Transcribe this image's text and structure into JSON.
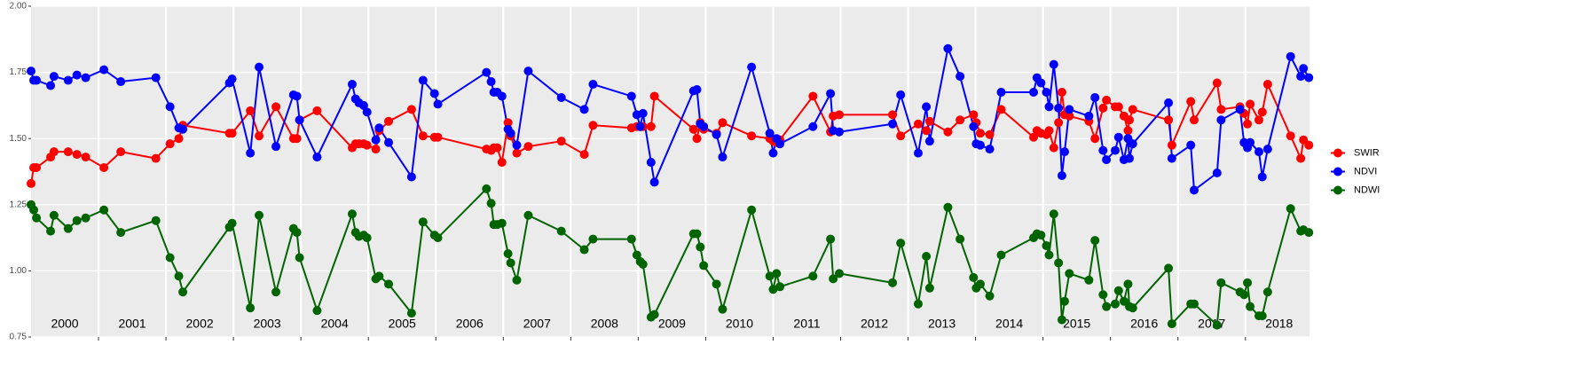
{
  "chart_data": {
    "type": "line",
    "x": [
      2000.0,
      2000.04,
      2000.08,
      2000.29,
      2000.34,
      2000.55,
      2000.68,
      2000.81,
      2001.08,
      2001.33,
      2001.85,
      2002.06,
      2002.19,
      2002.25,
      2002.94,
      2002.98,
      2003.25,
      2003.38,
      2003.63,
      2003.89,
      2003.94,
      2003.98,
      2004.24,
      2004.76,
      2004.81,
      2004.86,
      2004.93,
      2004.98,
      2005.11,
      2005.16,
      2005.3,
      2005.64,
      2005.81,
      2005.98,
      2006.03,
      2006.75,
      2006.82,
      2006.86,
      2006.91,
      2006.98,
      2007.07,
      2007.11,
      2007.2,
      2007.37,
      2007.86,
      2008.2,
      2008.33,
      2008.9,
      2008.98,
      2009.03,
      2009.07,
      2009.19,
      2009.24,
      2009.82,
      2009.87,
      2009.92,
      2009.97,
      2010.16,
      2010.25,
      2010.68,
      2010.95,
      2011.0,
      2011.05,
      2011.1,
      2011.59,
      2011.85,
      2011.89,
      2011.98,
      2012.77,
      2012.89,
      2013.15,
      2013.27,
      2013.32,
      2013.59,
      2013.77,
      2013.97,
      2014.01,
      2014.07,
      2014.21,
      2014.38,
      2014.86,
      2014.91,
      2014.97,
      2015.05,
      2015.09,
      2015.16,
      2015.23,
      2015.28,
      2015.32,
      2015.39,
      2015.68,
      2015.77,
      2015.89,
      2015.94,
      2016.07,
      2016.12,
      2016.2,
      2016.26,
      2016.28,
      2016.33,
      2016.86,
      2016.91,
      2017.19,
      2017.24,
      2017.58,
      2017.64,
      2017.92,
      2017.98,
      2018.03,
      2018.07,
      2018.2,
      2018.25,
      2018.33,
      2018.67,
      2018.82,
      2018.86,
      2018.94
    ],
    "series": [
      {
        "name": "SWIR",
        "color": "#ff0000",
        "values": [
          1.33,
          1.39,
          1.39,
          1.43,
          1.45,
          1.45,
          1.44,
          1.43,
          1.39,
          1.45,
          1.425,
          1.48,
          1.5,
          1.55,
          1.52,
          1.52,
          1.605,
          1.51,
          1.62,
          1.5,
          1.5,
          1.57,
          1.605,
          1.465,
          1.48,
          1.48,
          1.48,
          1.475,
          1.46,
          1.53,
          1.565,
          1.61,
          1.51,
          1.505,
          1.505,
          1.46,
          1.455,
          1.465,
          1.465,
          1.41,
          1.56,
          1.51,
          1.445,
          1.47,
          1.49,
          1.44,
          1.55,
          1.54,
          1.545,
          1.545,
          1.545,
          1.545,
          1.66,
          1.535,
          1.5,
          1.56,
          1.535,
          1.52,
          1.56,
          1.51,
          1.5,
          1.49,
          1.485,
          1.495,
          1.66,
          1.525,
          1.585,
          1.59,
          1.59,
          1.51,
          1.555,
          1.53,
          1.565,
          1.525,
          1.57,
          1.59,
          1.56,
          1.52,
          1.515,
          1.61,
          1.505,
          1.53,
          1.52,
          1.515,
          1.53,
          1.465,
          1.56,
          1.675,
          1.59,
          1.585,
          1.565,
          1.5,
          1.615,
          1.645,
          1.62,
          1.62,
          1.585,
          1.53,
          1.57,
          1.61,
          1.57,
          1.475,
          1.64,
          1.57,
          1.71,
          1.61,
          1.62,
          1.595,
          1.555,
          1.63,
          1.57,
          1.6,
          1.705,
          1.51,
          1.425,
          1.495,
          1.475
        ]
      },
      {
        "name": "NDVI",
        "color": "#0000ff",
        "values": [
          1.755,
          1.72,
          1.72,
          1.7,
          1.735,
          1.72,
          1.74,
          1.73,
          1.76,
          1.715,
          1.73,
          1.62,
          1.54,
          1.535,
          1.71,
          1.725,
          1.445,
          1.77,
          1.47,
          1.665,
          1.66,
          1.57,
          1.43,
          1.705,
          1.65,
          1.635,
          1.625,
          1.6,
          1.495,
          1.54,
          1.485,
          1.355,
          1.72,
          1.67,
          1.63,
          1.75,
          1.715,
          1.675,
          1.675,
          1.66,
          1.535,
          1.52,
          1.475,
          1.755,
          1.655,
          1.61,
          1.705,
          1.66,
          1.59,
          1.545,
          1.595,
          1.41,
          1.335,
          1.68,
          1.685,
          1.555,
          1.545,
          1.515,
          1.43,
          1.77,
          1.52,
          1.445,
          1.5,
          1.48,
          1.545,
          1.67,
          1.53,
          1.525,
          1.555,
          1.665,
          1.445,
          1.62,
          1.49,
          1.84,
          1.735,
          1.545,
          1.48,
          1.475,
          1.46,
          1.675,
          1.675,
          1.73,
          1.71,
          1.675,
          1.62,
          1.78,
          1.615,
          1.36,
          1.45,
          1.61,
          1.585,
          1.655,
          1.455,
          1.42,
          1.455,
          1.505,
          1.42,
          1.5,
          1.425,
          1.48,
          1.635,
          1.425,
          1.475,
          1.305,
          1.37,
          1.57,
          1.61,
          1.485,
          1.465,
          1.485,
          1.45,
          1.355,
          1.46,
          1.81,
          1.735,
          1.765,
          1.73
        ]
      },
      {
        "name": "NDWI",
        "color": "#006400",
        "values": [
          1.25,
          1.23,
          1.2,
          1.15,
          1.21,
          1.16,
          1.19,
          1.2,
          1.23,
          1.145,
          1.19,
          1.05,
          0.98,
          0.92,
          1.165,
          1.18,
          0.86,
          1.21,
          0.92,
          1.16,
          1.145,
          1.05,
          0.85,
          1.215,
          1.145,
          1.13,
          1.135,
          1.125,
          0.97,
          0.98,
          0.95,
          0.84,
          1.185,
          1.135,
          1.125,
          1.31,
          1.255,
          1.175,
          1.175,
          1.18,
          1.065,
          1.03,
          0.965,
          1.21,
          1.15,
          1.08,
          1.12,
          1.12,
          1.06,
          1.035,
          1.025,
          0.825,
          0.835,
          1.14,
          1.14,
          1.09,
          1.02,
          0.95,
          0.855,
          1.23,
          0.98,
          0.93,
          0.99,
          0.94,
          0.98,
          1.12,
          0.97,
          0.99,
          0.955,
          1.105,
          0.875,
          1.055,
          0.935,
          1.24,
          1.12,
          0.975,
          0.935,
          0.95,
          0.905,
          1.06,
          1.125,
          1.14,
          1.135,
          1.095,
          1.06,
          1.215,
          1.03,
          0.815,
          0.885,
          0.99,
          0.965,
          1.115,
          0.91,
          0.865,
          0.875,
          0.925,
          0.885,
          0.95,
          0.865,
          0.86,
          1.01,
          0.8,
          0.875,
          0.875,
          0.795,
          0.955,
          0.92,
          0.91,
          0.955,
          0.865,
          0.83,
          0.83,
          0.92,
          1.235,
          1.15,
          1.155,
          1.145
        ]
      }
    ],
    "xlim": [
      2000,
      2018.95
    ],
    "xticks": [
      2001,
      2002,
      2003,
      2004,
      2005,
      2006,
      2007,
      2008,
      2009,
      2010,
      2011,
      2012,
      2013,
      2014,
      2015,
      2016,
      2017,
      2018
    ],
    "year_labels": [
      "2000",
      "2001",
      "2002",
      "2003",
      "2004",
      "2005",
      "2006",
      "2007",
      "2008",
      "2009",
      "2010",
      "2011",
      "2012",
      "2013",
      "2014",
      "2015",
      "2016",
      "2017",
      "2018"
    ],
    "ylim": [
      0.75,
      2.0
    ],
    "yticks": [
      {
        "value": 0.75,
        "label": "0.75"
      },
      {
        "value": 1.0,
        "label": "1.00"
      },
      {
        "value": 1.25,
        "label": "1.25"
      },
      {
        "value": 1.5,
        "label": "1.50"
      },
      {
        "value": 1.75,
        "label": "1.75"
      },
      {
        "value": 2.0,
        "label": "2.00"
      }
    ],
    "grid": true,
    "legend": "right"
  }
}
